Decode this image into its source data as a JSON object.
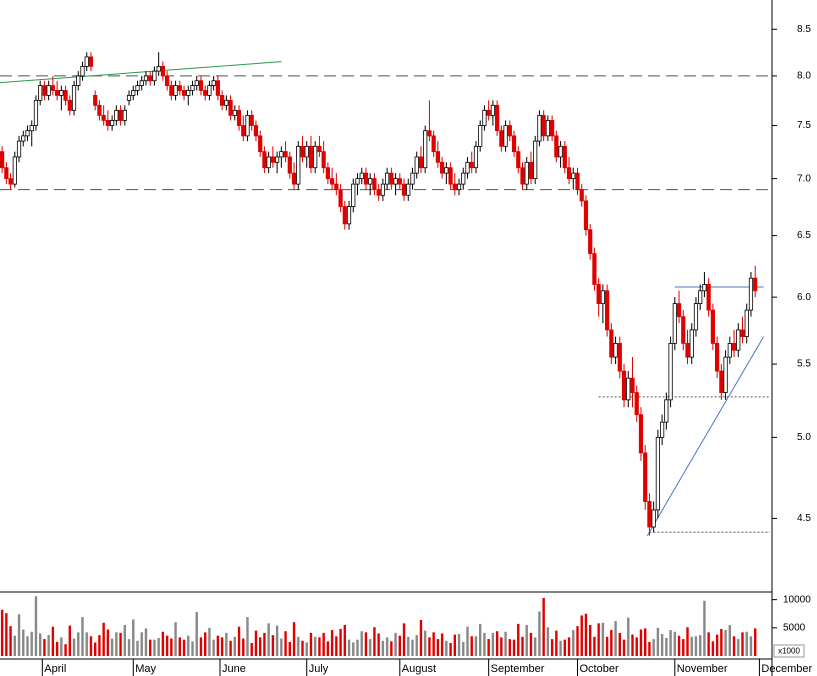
{
  "chart_data": {
    "type": "candlestick",
    "log_scale": true,
    "ylim": [
      4.1,
      8.83
    ],
    "yticks": [
      4.5,
      {
        "value": 5,
        "label": "5.0"
      },
      5.5,
      {
        "value": 6,
        "label": "6.0"
      },
      6.5,
      {
        "value": 7,
        "label": "7.0"
      },
      7.5,
      {
        "value": 8,
        "label": "8.0"
      },
      8.5
    ],
    "xlim": [
      -0.5,
      181.5
    ],
    "xticks": [
      {
        "value": 9.5,
        "label": "April"
      },
      {
        "value": 31,
        "label": "May"
      },
      {
        "value": 51.5,
        "label": "June"
      },
      {
        "value": 72,
        "label": "July"
      },
      {
        "value": 94,
        "label": "August"
      },
      {
        "value": 115,
        "label": "September"
      },
      {
        "value": 136,
        "label": "October"
      },
      {
        "value": 159,
        "label": "November"
      },
      {
        "value": 179,
        "label": "December"
      }
    ],
    "up_color": "#ffffff",
    "down_color": "#e00000",
    "volume_up_color": "#888888",
    "ohlc": [
      [
        7.25,
        7.3,
        7.05,
        7.1
      ],
      [
        7.1,
        7.15,
        6.95,
        7.0
      ],
      [
        7.0,
        7.05,
        6.9,
        6.95
      ],
      [
        6.95,
        7.25,
        6.92,
        7.2
      ],
      [
        7.2,
        7.4,
        7.15,
        7.35
      ],
      [
        7.35,
        7.45,
        7.3,
        7.4
      ],
      [
        7.4,
        7.5,
        7.35,
        7.45
      ],
      [
        7.45,
        7.55,
        7.3,
        7.5
      ],
      [
        7.5,
        7.8,
        7.45,
        7.75
      ],
      [
        7.75,
        7.95,
        7.7,
        7.9
      ],
      [
        7.9,
        7.95,
        7.75,
        7.8
      ],
      [
        7.8,
        7.95,
        7.75,
        7.9
      ],
      [
        7.9,
        8.0,
        7.8,
        7.85
      ],
      [
        7.85,
        7.95,
        7.75,
        7.8
      ],
      [
        7.8,
        7.9,
        7.65,
        7.85
      ],
      [
        7.85,
        7.9,
        7.7,
        7.75
      ],
      [
        7.75,
        7.8,
        7.6,
        7.65
      ],
      [
        7.65,
        7.95,
        7.6,
        7.9
      ],
      [
        7.9,
        8.05,
        7.85,
        8.0
      ],
      [
        8.0,
        8.15,
        7.95,
        8.1
      ],
      [
        8.1,
        8.25,
        8.05,
        8.2
      ],
      [
        8.2,
        8.25,
        8.05,
        8.1
      ],
      [
        7.8,
        7.85,
        7.65,
        7.7
      ],
      [
        7.7,
        7.75,
        7.55,
        7.6
      ],
      [
        7.6,
        7.7,
        7.5,
        7.55
      ],
      [
        7.55,
        7.65,
        7.45,
        7.5
      ],
      [
        7.5,
        7.6,
        7.45,
        7.55
      ],
      [
        7.55,
        7.7,
        7.5,
        7.65
      ],
      [
        7.65,
        7.7,
        7.5,
        7.55
      ],
      [
        7.55,
        7.7,
        7.5,
        7.65
      ],
      [
        7.75,
        7.85,
        7.7,
        7.8
      ],
      [
        7.8,
        7.9,
        7.75,
        7.85
      ],
      [
        7.85,
        7.95,
        7.8,
        7.9
      ],
      [
        7.9,
        8.0,
        7.85,
        7.95
      ],
      [
        7.95,
        8.05,
        7.9,
        8.0
      ],
      [
        8.0,
        8.05,
        7.9,
        7.95
      ],
      [
        7.95,
        8.1,
        7.9,
        8.05
      ],
      [
        8.05,
        8.25,
        8.0,
        8.1
      ],
      [
        8.1,
        8.15,
        7.95,
        8.0
      ],
      [
        8.0,
        8.05,
        7.85,
        7.9
      ],
      [
        7.9,
        7.95,
        7.75,
        7.8
      ],
      [
        7.8,
        7.95,
        7.75,
        7.9
      ],
      [
        7.9,
        7.95,
        7.8,
        7.85
      ],
      [
        7.85,
        7.9,
        7.75,
        7.8
      ],
      [
        7.8,
        7.9,
        7.7,
        7.85
      ],
      [
        7.85,
        7.95,
        7.8,
        7.9
      ],
      [
        7.9,
        8.0,
        7.85,
        7.95
      ],
      [
        7.95,
        8.0,
        7.8,
        7.85
      ],
      [
        7.85,
        7.9,
        7.75,
        7.8
      ],
      [
        7.8,
        7.95,
        7.75,
        7.9
      ],
      [
        7.9,
        8.0,
        7.85,
        7.95
      ],
      [
        7.95,
        8.0,
        7.75,
        7.8
      ],
      [
        7.8,
        7.85,
        7.65,
        7.7
      ],
      [
        7.7,
        7.8,
        7.65,
        7.75
      ],
      [
        7.75,
        7.8,
        7.55,
        7.6
      ],
      [
        7.6,
        7.7,
        7.55,
        7.65
      ],
      [
        7.65,
        7.7,
        7.45,
        7.5
      ],
      [
        7.5,
        7.6,
        7.35,
        7.4
      ],
      [
        7.4,
        7.65,
        7.35,
        7.6
      ],
      [
        7.6,
        7.65,
        7.45,
        7.5
      ],
      [
        7.5,
        7.55,
        7.35,
        7.4
      ],
      [
        7.4,
        7.45,
        7.2,
        7.25
      ],
      [
        7.25,
        7.3,
        7.05,
        7.1
      ],
      [
        7.1,
        7.25,
        7.05,
        7.2
      ],
      [
        7.2,
        7.3,
        7.1,
        7.15
      ],
      [
        7.15,
        7.25,
        7.05,
        7.2
      ],
      [
        7.2,
        7.3,
        7.1,
        7.25
      ],
      [
        7.25,
        7.35,
        7.15,
        7.2
      ],
      [
        7.2,
        7.25,
        7.0,
        7.05
      ],
      [
        7.05,
        7.15,
        6.9,
        6.95
      ],
      [
        6.95,
        7.35,
        6.9,
        7.3
      ],
      [
        7.3,
        7.4,
        7.15,
        7.2
      ],
      [
        7.2,
        7.35,
        7.1,
        7.3
      ],
      [
        7.3,
        7.4,
        7.05,
        7.1
      ],
      [
        7.1,
        7.35,
        7.05,
        7.3
      ],
      [
        7.3,
        7.4,
        7.2,
        7.25
      ],
      [
        7.25,
        7.35,
        7.05,
        7.1
      ],
      [
        7.1,
        7.15,
        6.95,
        7.0
      ],
      [
        7.0,
        7.1,
        6.9,
        6.95
      ],
      [
        6.95,
        7.05,
        6.85,
        6.9
      ],
      [
        6.9,
        6.95,
        6.7,
        6.75
      ],
      [
        6.75,
        6.8,
        6.55,
        6.6
      ],
      [
        6.6,
        6.8,
        6.55,
        6.75
      ],
      [
        6.75,
        7.0,
        6.7,
        6.95
      ],
      [
        6.95,
        7.05,
        6.85,
        7.0
      ],
      [
        7.0,
        7.1,
        6.95,
        7.05
      ],
      [
        7.05,
        7.1,
        6.9,
        6.95
      ],
      [
        6.95,
        7.05,
        6.85,
        7.0
      ],
      [
        7.0,
        7.05,
        6.85,
        6.9
      ],
      [
        6.9,
        6.95,
        6.8,
        6.85
      ],
      [
        6.85,
        7.0,
        6.8,
        6.95
      ],
      [
        6.95,
        7.1,
        6.9,
        7.05
      ],
      [
        7.05,
        7.1,
        6.9,
        6.95
      ],
      [
        6.95,
        7.05,
        6.85,
        7.0
      ],
      [
        7.0,
        7.05,
        6.9,
        6.95
      ],
      [
        6.95,
        7.0,
        6.8,
        6.85
      ],
      [
        6.85,
        7.0,
        6.8,
        6.95
      ],
      [
        6.95,
        7.1,
        6.9,
        7.05
      ],
      [
        7.05,
        7.25,
        7.0,
        7.2
      ],
      [
        7.2,
        7.3,
        7.05,
        7.1
      ],
      [
        7.1,
        7.5,
        7.05,
        7.45
      ],
      [
        7.45,
        7.75,
        7.35,
        7.4
      ],
      [
        7.4,
        7.45,
        7.2,
        7.25
      ],
      [
        7.25,
        7.35,
        7.1,
        7.15
      ],
      [
        7.15,
        7.2,
        7.0,
        7.05
      ],
      [
        7.05,
        7.15,
        6.95,
        7.1
      ],
      [
        7.1,
        7.15,
        6.9,
        6.95
      ],
      [
        6.95,
        7.05,
        6.85,
        6.9
      ],
      [
        6.9,
        7.0,
        6.85,
        6.95
      ],
      [
        6.95,
        7.1,
        6.9,
        7.05
      ],
      [
        7.05,
        7.2,
        7.0,
        7.15
      ],
      [
        7.15,
        7.25,
        7.05,
        7.1
      ],
      [
        7.1,
        7.35,
        7.05,
        7.3
      ],
      [
        7.3,
        7.55,
        7.25,
        7.5
      ],
      [
        7.5,
        7.7,
        7.45,
        7.65
      ],
      [
        7.65,
        7.75,
        7.55,
        7.6
      ],
      [
        7.6,
        7.75,
        7.5,
        7.7
      ],
      [
        7.7,
        7.75,
        7.4,
        7.45
      ],
      [
        7.45,
        7.5,
        7.25,
        7.3
      ],
      [
        7.3,
        7.55,
        7.25,
        7.5
      ],
      [
        7.5,
        7.55,
        7.35,
        7.4
      ],
      [
        7.4,
        7.45,
        7.2,
        7.25
      ],
      [
        7.25,
        7.3,
        7.05,
        7.1
      ],
      [
        7.1,
        7.15,
        6.9,
        6.95
      ],
      [
        6.95,
        7.2,
        6.9,
        7.15
      ],
      [
        7.15,
        7.25,
        6.95,
        7.0
      ],
      [
        7.0,
        7.4,
        6.95,
        7.35
      ],
      [
        7.35,
        7.65,
        7.3,
        7.6
      ],
      [
        7.6,
        7.65,
        7.35,
        7.4
      ],
      [
        7.4,
        7.6,
        7.35,
        7.55
      ],
      [
        7.55,
        7.6,
        7.35,
        7.4
      ],
      [
        7.4,
        7.45,
        7.15,
        7.2
      ],
      [
        7.2,
        7.35,
        7.1,
        7.3
      ],
      [
        7.3,
        7.35,
        7.05,
        7.1
      ],
      [
        7.1,
        7.2,
        6.95,
        7.0
      ],
      [
        7.0,
        7.1,
        6.9,
        7.05
      ],
      [
        7.05,
        7.1,
        6.85,
        6.9
      ],
      [
        6.9,
        6.95,
        6.75,
        6.8
      ],
      [
        6.8,
        6.85,
        6.5,
        6.55
      ],
      [
        6.55,
        6.6,
        6.3,
        6.35
      ],
      [
        6.35,
        6.4,
        6.05,
        6.1
      ],
      [
        6.1,
        6.15,
        5.85,
        5.95
      ],
      [
        5.95,
        6.1,
        5.8,
        6.05
      ],
      [
        6.05,
        6.1,
        5.7,
        5.75
      ],
      [
        5.75,
        5.8,
        5.5,
        5.55
      ],
      [
        5.55,
        5.7,
        5.5,
        5.65
      ],
      [
        5.65,
        5.7,
        5.4,
        5.45
      ],
      [
        5.45,
        5.5,
        5.2,
        5.25
      ],
      [
        5.25,
        5.45,
        5.2,
        5.4
      ],
      [
        5.4,
        5.55,
        5.2,
        5.3
      ],
      [
        5.3,
        5.35,
        5.1,
        5.15
      ],
      [
        5.15,
        5.2,
        4.85,
        4.9
      ],
      [
        4.9,
        4.95,
        4.55,
        4.6
      ],
      [
        4.6,
        4.65,
        4.4,
        4.45
      ],
      [
        4.45,
        4.6,
        4.42,
        4.55
      ],
      [
        4.55,
        5.05,
        4.5,
        5.0
      ],
      [
        5.0,
        5.15,
        4.95,
        5.1
      ],
      [
        5.1,
        5.3,
        5.05,
        5.25
      ],
      [
        5.25,
        5.7,
        5.2,
        5.65
      ],
      [
        5.65,
        6.0,
        5.6,
        5.95
      ],
      [
        5.95,
        6.05,
        5.8,
        5.85
      ],
      [
        5.85,
        5.9,
        5.6,
        5.65
      ],
      [
        5.65,
        5.75,
        5.5,
        5.55
      ],
      [
        5.55,
        5.8,
        5.5,
        5.75
      ],
      [
        5.75,
        6.0,
        5.7,
        5.95
      ],
      [
        5.95,
        6.1,
        5.9,
        6.05
      ],
      [
        6.05,
        6.2,
        6.0,
        6.1
      ],
      [
        6.1,
        6.15,
        5.85,
        5.9
      ],
      [
        5.9,
        5.95,
        5.6,
        5.65
      ],
      [
        5.65,
        5.7,
        5.4,
        5.45
      ],
      [
        5.45,
        5.5,
        5.25,
        5.3
      ],
      [
        5.3,
        5.6,
        5.25,
        5.55
      ],
      [
        5.55,
        5.7,
        5.5,
        5.65
      ],
      [
        5.65,
        5.75,
        5.55,
        5.6
      ],
      [
        5.6,
        5.8,
        5.55,
        5.75
      ],
      [
        5.75,
        5.85,
        5.65,
        5.7
      ],
      [
        5.7,
        5.95,
        5.65,
        5.9
      ],
      [
        5.9,
        6.2,
        5.85,
        6.15
      ],
      [
        6.15,
        6.25,
        6.0,
        6.05
      ]
    ],
    "volume": [
      8200,
      7600,
      5300,
      3600,
      7400,
      4700,
      3500,
      4300,
      10600,
      4000,
      3000,
      3700,
      5200,
      2500,
      3300,
      2100,
      5400,
      3100,
      4200,
      6900,
      4200,
      3500,
      2400,
      3700,
      5900,
      4700,
      3100,
      4200,
      4100,
      5500,
      3000,
      6500,
      2700,
      4200,
      4900,
      2900,
      2900,
      3200,
      4300,
      3600,
      3100,
      6000,
      3300,
      2900,
      3600,
      2600,
      7800,
      3300,
      4200,
      5000,
      2900,
      3600,
      3300,
      4100,
      2700,
      3400,
      5200,
      3100,
      6900,
      2300,
      4500,
      3300,
      4100,
      5800,
      3700,
      5400,
      3100,
      4400,
      2500,
      6000,
      3400,
      2700,
      2400,
      4100,
      3400,
      3300,
      4100,
      2600,
      4600,
      3500,
      4800,
      5500,
      2900,
      2400,
      2900,
      4400,
      4200,
      3000,
      5100,
      4000,
      2700,
      3300,
      2600,
      4100,
      3600,
      5800,
      3400,
      2900,
      3700,
      6400,
      4500,
      3300,
      4200,
      3000,
      4000,
      2700,
      2300,
      3800,
      3900,
      2500,
      5200,
      3500,
      3500,
      5700,
      4100,
      3000,
      4100,
      4400,
      3300,
      4300,
      3000,
      2900,
      5700,
      3400,
      5500,
      4100,
      3300,
      7900,
      10300,
      5100,
      3000,
      4500,
      2700,
      2900,
      3300,
      4600,
      5300,
      7200,
      7500,
      5500,
      3400,
      5800,
      5900,
      3400,
      4600,
      6200,
      4100,
      2900,
      6800,
      3800,
      3300,
      4700,
      4900,
      2500,
      3000,
      5000,
      3900,
      3200,
      4600,
      4300,
      3600,
      3000,
      5100,
      3400,
      3500,
      3700,
      9800,
      4200,
      2600,
      3800,
      4800,
      4600,
      5500,
      3500,
      3000,
      4200,
      4300,
      3500,
      4900
    ],
    "volume_ylim": [
      0,
      11000
    ],
    "volume_yticks": [
      5000,
      10000
    ],
    "volume_unit": "x1000",
    "lines": [
      {
        "x": [
          -0.5,
          181.5
        ],
        "y": [
          8.0,
          8.0
        ],
        "color": "#555555",
        "style": "dashed"
      },
      {
        "x": [
          -0.5,
          181.5
        ],
        "y": [
          6.9,
          6.9
        ],
        "color": "#555555",
        "style": "dashed"
      },
      {
        "x": [
          141,
          181.5
        ],
        "y": [
          5.27,
          5.27
        ],
        "color": "#555555",
        "style": "dotted"
      },
      {
        "x": [
          153,
          181.5
        ],
        "y": [
          4.42,
          4.42
        ],
        "color": "#555555",
        "style": "dotted"
      },
      {
        "x": [
          -0.5,
          66
        ],
        "y": [
          7.93,
          8.15
        ],
        "color": "#2e9a4a",
        "style": "solid"
      },
      {
        "x": [
          152.5,
          180
        ],
        "y": [
          4.4,
          5.7
        ],
        "color": "#4a78c8",
        "style": "solid"
      },
      {
        "x": [
          159,
          180
        ],
        "y": [
          6.08,
          6.08
        ],
        "color": "#4a78c8",
        "style": "solid"
      }
    ]
  }
}
